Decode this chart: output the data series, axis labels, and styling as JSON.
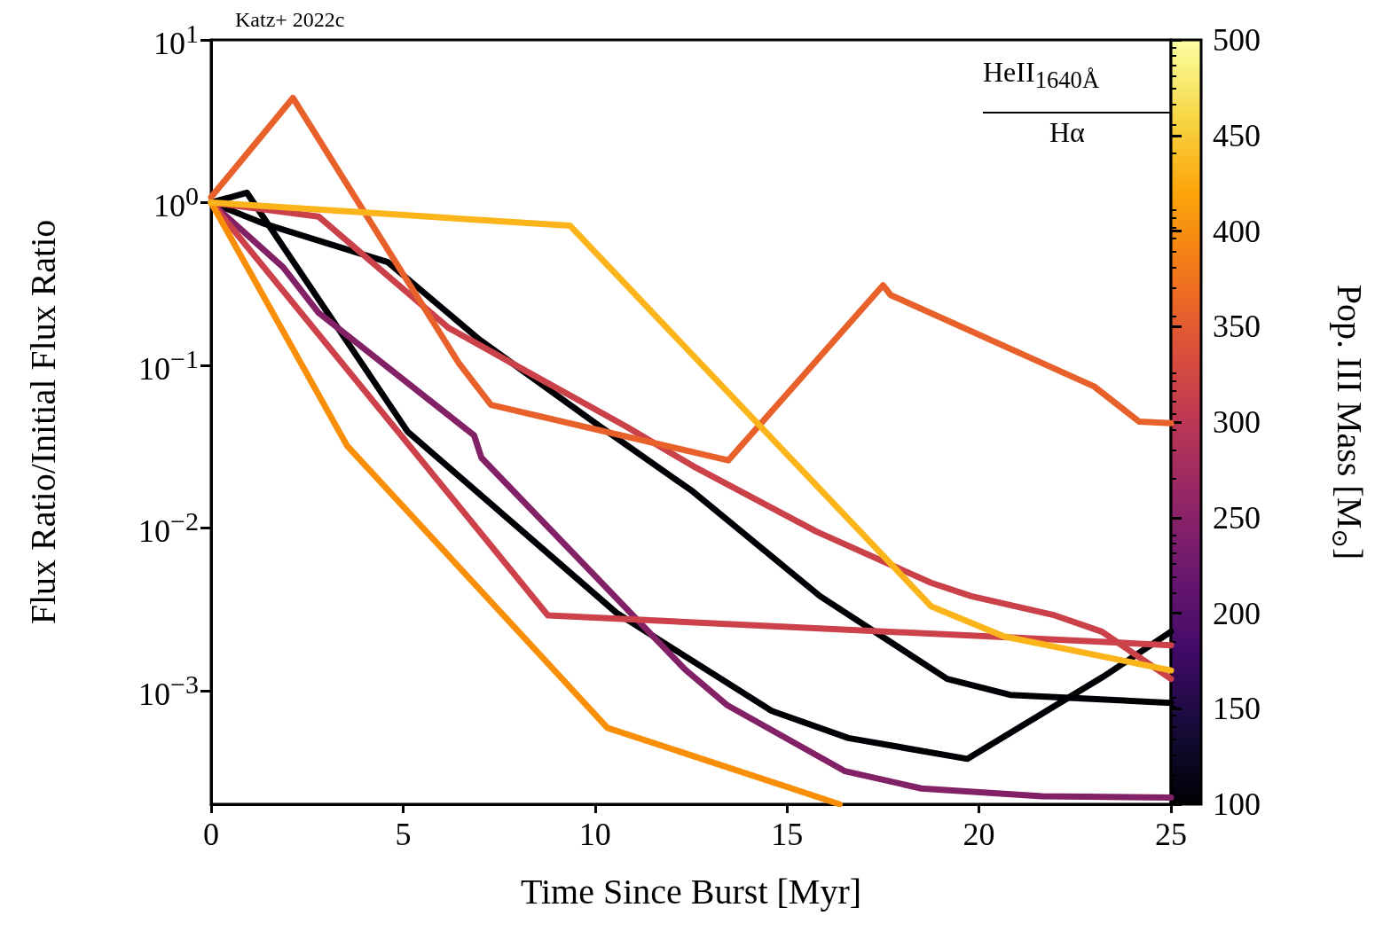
{
  "chart_data": {
    "type": "line",
    "xlabel": "Time Since Burst [Myr]",
    "ylabel": "Flux Ratio/Initial Flux Ratio",
    "clabel": "Pop. III Mass [M$_{⊙}$]",
    "annotations": [
      "Katz+ 2022c",
      "HeII$_{1640Å}$",
      "Hα"
    ],
    "log": "y",
    "marker": "none",
    "line_style": "solid",
    "xlim": [
      0,
      25
    ],
    "xticks": [
      0,
      5,
      10,
      15,
      20,
      25
    ],
    "ylim": [
      0.0002,
      10
    ],
    "yticks": [
      {
        "value": 10,
        "label": "10$^{1}$"
      },
      {
        "value": 1,
        "label": "10$^{0}$"
      },
      {
        "value": 0.1,
        "label": "10$^{−1}$"
      },
      {
        "value": 0.01,
        "label": "10$^{−2}$"
      },
      {
        "value": 0.001,
        "label": "10$^{−3}$"
      },
      {
        "value": 0.0002,
        "label": null
      },
      {
        "value": 0.0003,
        "label": null
      },
      {
        "value": 0.0004,
        "label": null
      },
      {
        "value": 0.0005,
        "label": null
      },
      {
        "value": 0.0006,
        "label": null
      },
      {
        "value": 0.0007,
        "label": null
      },
      {
        "value": 0.0008,
        "label": null
      },
      {
        "value": 0.0009,
        "label": null
      },
      {
        "value": 0.002,
        "label": null
      },
      {
        "value": 0.003,
        "label": null
      },
      {
        "value": 0.004,
        "label": null
      },
      {
        "value": 0.005,
        "label": null
      },
      {
        "value": 0.006,
        "label": null
      },
      {
        "value": 0.007,
        "label": null
      },
      {
        "value": 0.008,
        "label": null
      },
      {
        "value": 0.009,
        "label": null
      },
      {
        "value": 0.02,
        "label": null
      },
      {
        "value": 0.03,
        "label": null
      },
      {
        "value": 0.04,
        "label": null
      },
      {
        "value": 0.05,
        "label": null
      },
      {
        "value": 0.06,
        "label": null
      },
      {
        "value": 0.07,
        "label": null
      },
      {
        "value": 0.08,
        "label": null
      },
      {
        "value": 0.09,
        "label": null
      },
      {
        "value": 0.2,
        "label": null
      },
      {
        "value": 0.3,
        "label": null
      },
      {
        "value": 0.4,
        "label": null
      },
      {
        "value": 0.5,
        "label": null
      },
      {
        "value": 0.6,
        "label": null
      },
      {
        "value": 0.7,
        "label": null
      },
      {
        "value": 0.8,
        "label": null
      },
      {
        "value": 0.9,
        "label": null
      },
      {
        "value": 2,
        "label": null
      },
      {
        "value": 3,
        "label": null
      },
      {
        "value": 4,
        "label": null
      },
      {
        "value": 5,
        "label": null
      },
      {
        "value": 6,
        "label": null
      },
      {
        "value": 7,
        "label": null
      },
      {
        "value": 8,
        "label": null
      },
      {
        "value": 9,
        "label": null
      }
    ],
    "clim": [
      100,
      500
    ],
    "cticks": [
      100,
      150,
      200,
      250,
      300,
      350,
      400,
      450,
      500
    ],
    "series": [
      {
        "color": "#000004",
        "x": [
          0,
          0.93,
          5.12,
          10.56,
          14.6,
          16.6,
          19.7,
          23.29,
          25
        ],
        "values": [
          1,
          1.15,
          0.039,
          0.003,
          0.00075,
          0.00051,
          0.00038,
          0.00124,
          0.0023
        ]
      },
      {
        "color": "#000004",
        "x": [
          0,
          1.39,
          4.6,
          7.0,
          10.07,
          12.55,
          15.86,
          19.17,
          20.81,
          25
        ],
        "values": [
          1,
          0.74,
          0.43,
          0.143,
          0.043,
          0.0167,
          0.0038,
          0.00118,
          0.00094,
          0.00084
        ]
      },
      {
        "color": "#822166",
        "x": [
          0,
          1.875,
          2.8,
          6.85,
          7.04,
          12.34,
          13.45,
          16.5,
          18.5,
          21.64,
          25
        ],
        "values": [
          1,
          0.4,
          0.21,
          0.037,
          0.027,
          0.00135,
          0.00081,
          0.00032,
          0.00025,
          0.000224,
          0.00022
        ]
      },
      {
        "color": "#cb4149",
        "x": [
          0,
          2.8,
          6.18,
          8.24,
          10.81,
          12.55,
          15.76,
          18.75,
          19.8,
          21.97,
          23.2,
          25
        ],
        "values": [
          1,
          0.82,
          0.17,
          0.091,
          0.042,
          0.024,
          0.0095,
          0.0046,
          0.0038,
          0.0029,
          0.0023,
          0.00118
        ]
      },
      {
        "color": "#cd424a",
        "x": [
          0,
          8.77,
          25
        ],
        "values": [
          1,
          0.0029,
          0.0019
        ]
      },
      {
        "color": "#e8602a",
        "x": [
          0,
          2.13,
          6.44,
          7.29,
          13.47,
          17.5,
          17.7,
          23.0,
          24.17,
          25
        ],
        "values": [
          1.08,
          4.4,
          0.104,
          0.057,
          0.026,
          0.31,
          0.27,
          0.074,
          0.045,
          0.044
        ]
      },
      {
        "color": "#f98e09",
        "x": [
          0,
          3.54,
          10.32,
          16.37
        ],
        "values": [
          1,
          0.032,
          0.00059,
          0.0002
        ]
      },
      {
        "color": "#fbb41a",
        "x": [
          0,
          9.35,
          18.75,
          20.65,
          25
        ],
        "values": [
          1,
          0.72,
          0.0033,
          0.00215,
          0.00133
        ]
      }
    ]
  }
}
